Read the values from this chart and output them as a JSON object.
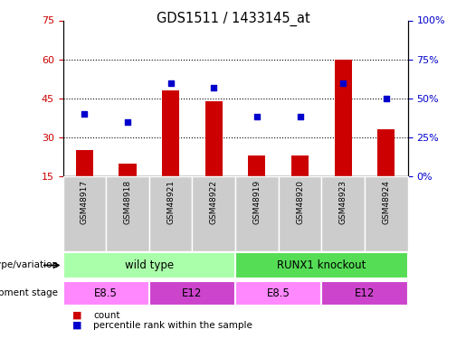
{
  "title": "GDS1511 / 1433145_at",
  "samples": [
    "GSM48917",
    "GSM48918",
    "GSM48921",
    "GSM48922",
    "GSM48919",
    "GSM48920",
    "GSM48923",
    "GSM48924"
  ],
  "counts": [
    25,
    20,
    48,
    44,
    23,
    23,
    60,
    33
  ],
  "percentiles": [
    40,
    35,
    60,
    57,
    38,
    38,
    60,
    50
  ],
  "left_ylim": [
    15,
    75
  ],
  "left_yticks": [
    15,
    30,
    45,
    60,
    75
  ],
  "right_ylim": [
    0,
    100
  ],
  "right_yticks": [
    0,
    25,
    50,
    75,
    100
  ],
  "right_yticklabels": [
    "0%",
    "25%",
    "50%",
    "75%",
    "100%"
  ],
  "bar_color": "#cc0000",
  "scatter_color": "#0000cc",
  "bar_width": 0.4,
  "genotype_groups": [
    {
      "label": "wild type",
      "start": 0,
      "end": 3,
      "color": "#aaffaa"
    },
    {
      "label": "RUNX1 knockout",
      "start": 4,
      "end": 7,
      "color": "#55dd55"
    }
  ],
  "dev_stage_groups": [
    {
      "label": "E8.5",
      "start": 0,
      "end": 1,
      "color": "#ff88ff"
    },
    {
      "label": "E12",
      "start": 2,
      "end": 3,
      "color": "#cc44cc"
    },
    {
      "label": "E8.5",
      "start": 4,
      "end": 5,
      "color": "#ff88ff"
    },
    {
      "label": "E12",
      "start": 6,
      "end": 7,
      "color": "#cc44cc"
    }
  ],
  "genotype_label": "genotype/variation",
  "dev_stage_label": "development stage",
  "legend_count_label": "count",
  "legend_percentile_label": "percentile rank within the sample",
  "background_color": "#ffffff",
  "tick_color_left": "#cc0000",
  "tick_color_right": "#0000cc",
  "sample_bg_color": "#cccccc",
  "grid_yticks": [
    30,
    45,
    60
  ]
}
